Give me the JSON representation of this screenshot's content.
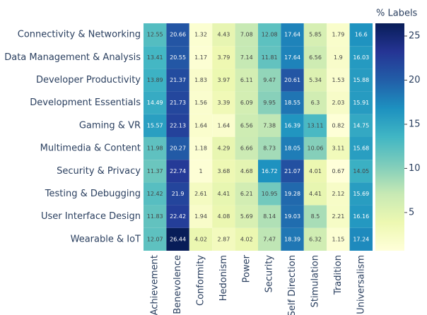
{
  "chart_data": {
    "type": "heatmap",
    "x": [
      "Achievement",
      "Benevolence",
      "Conformity",
      "Hedonism",
      "Power",
      "Security",
      "Self Direction",
      "Stimulation",
      "Tradition",
      "Universalism"
    ],
    "y": [
      "Connectivity & Networking",
      "Data Management & Analysis",
      "Developer Productivity",
      "Development Essentials",
      "Gaming & VR",
      "Multimedia & Content",
      "Security & Privacy",
      "Testing & Debugging",
      "User Interface Design",
      "Wearable & IoT"
    ],
    "z": [
      [
        12.55,
        20.66,
        1.32,
        4.43,
        7.08,
        12.08,
        17.64,
        5.85,
        1.79,
        16.6
      ],
      [
        13.41,
        20.55,
        1.17,
        3.79,
        7.14,
        11.81,
        17.64,
        6.56,
        1.9,
        16.03
      ],
      [
        13.89,
        21.37,
        1.83,
        3.97,
        6.11,
        9.47,
        20.61,
        5.34,
        1.53,
        15.88
      ],
      [
        14.49,
        21.73,
        1.56,
        3.39,
        6.09,
        9.95,
        18.55,
        6.3,
        2.03,
        15.91
      ],
      [
        15.57,
        22.13,
        1.64,
        1.64,
        6.56,
        7.38,
        16.39,
        13.11,
        0.82,
        14.75
      ],
      [
        11.98,
        20.27,
        1.18,
        4.29,
        6.66,
        8.73,
        18.05,
        10.06,
        3.11,
        15.68
      ],
      [
        11.37,
        22.74,
        1,
        3.68,
        4.68,
        16.72,
        21.07,
        4.01,
        0.67,
        14.05
      ],
      [
        12.42,
        21.9,
        2.61,
        4.41,
        6.21,
        10.95,
        19.28,
        4.41,
        2.12,
        15.69
      ],
      [
        11.83,
        22.42,
        1.94,
        4.08,
        5.69,
        8.14,
        19.03,
        8.5,
        2.21,
        16.16
      ],
      [
        12.07,
        26.44,
        4.02,
        2.87,
        4.02,
        7.47,
        18.39,
        6.32,
        1.15,
        17.24
      ]
    ],
    "colorbar_title": "% Labels",
    "zlim": [
      0.67,
      26.44
    ],
    "zticks": [
      5,
      10,
      15,
      20,
      25
    ],
    "colorscale": [
      "#ffffd9",
      "#edf8b1",
      "#c7e9b4",
      "#7fcdbb",
      "#41b6c4",
      "#1d91c0",
      "#225ea8",
      "#253494",
      "#081d58"
    ]
  }
}
